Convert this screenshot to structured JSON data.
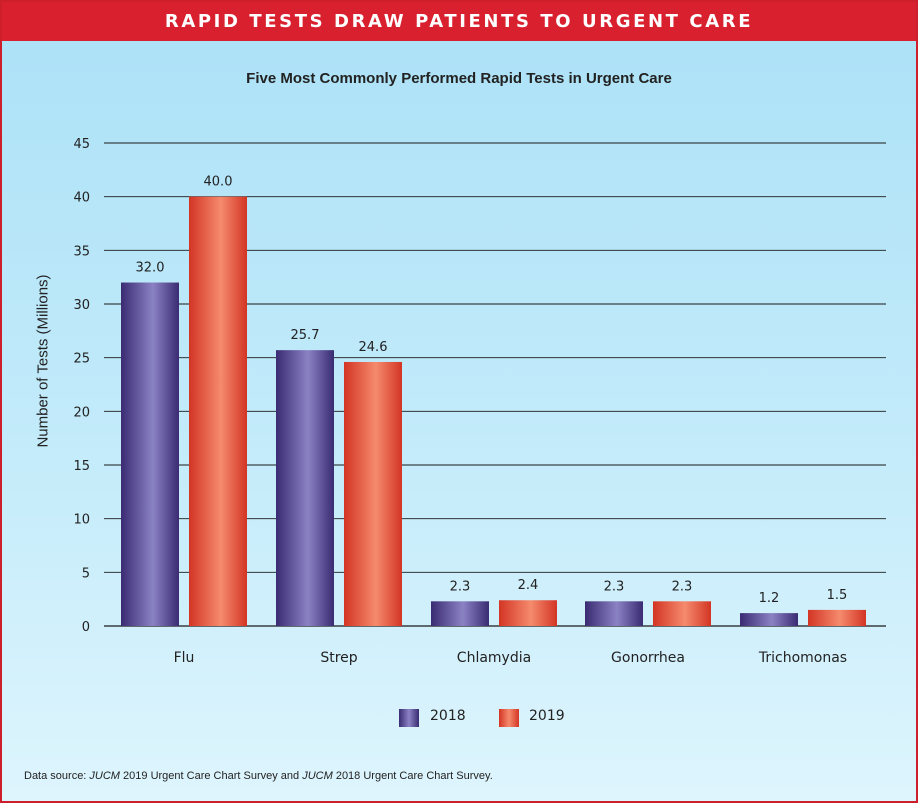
{
  "banner": {
    "title": "RAPID TESTS DRAW PATIENTS TO URGENT CARE"
  },
  "chart_data": {
    "type": "bar",
    "title": "Five Most Commonly Performed Rapid Tests in Urgent Care",
    "xlabel": "",
    "ylabel": "Number of Tests (Millions)",
    "ylim": [
      0,
      45
    ],
    "yticks": [
      0,
      5,
      10,
      15,
      20,
      25,
      30,
      35,
      40,
      45
    ],
    "grid": true,
    "legend_position": "bottom-center",
    "categories": [
      "Flu",
      "Strep",
      "Chlamydia",
      "Gonorrhea",
      "Trichomonas"
    ],
    "series": [
      {
        "name": "2018",
        "values": [
          32.0,
          25.7,
          2.3,
          2.3,
          1.2
        ],
        "labels": [
          "32.0",
          "25.7",
          "2.3",
          "2.3",
          "1.2"
        ],
        "color": "#4b3a8c"
      },
      {
        "name": "2019",
        "values": [
          40.0,
          24.6,
          2.4,
          2.3,
          1.5
        ],
        "labels": [
          "40.0",
          "24.6",
          "2.4",
          "2.3",
          "1.5"
        ],
        "color": "#e2432e"
      }
    ]
  },
  "source": {
    "prefix": "Data source: ",
    "journal1": "JUCM",
    "mid": " 2019 Urgent Care Chart Survey and ",
    "journal2": "JUCM",
    "suffix": " 2018 Urgent Care Chart Survey."
  },
  "colors": {
    "banner": "#d8202f",
    "series2018": "#4b3a8c",
    "series2019": "#e2432e"
  }
}
